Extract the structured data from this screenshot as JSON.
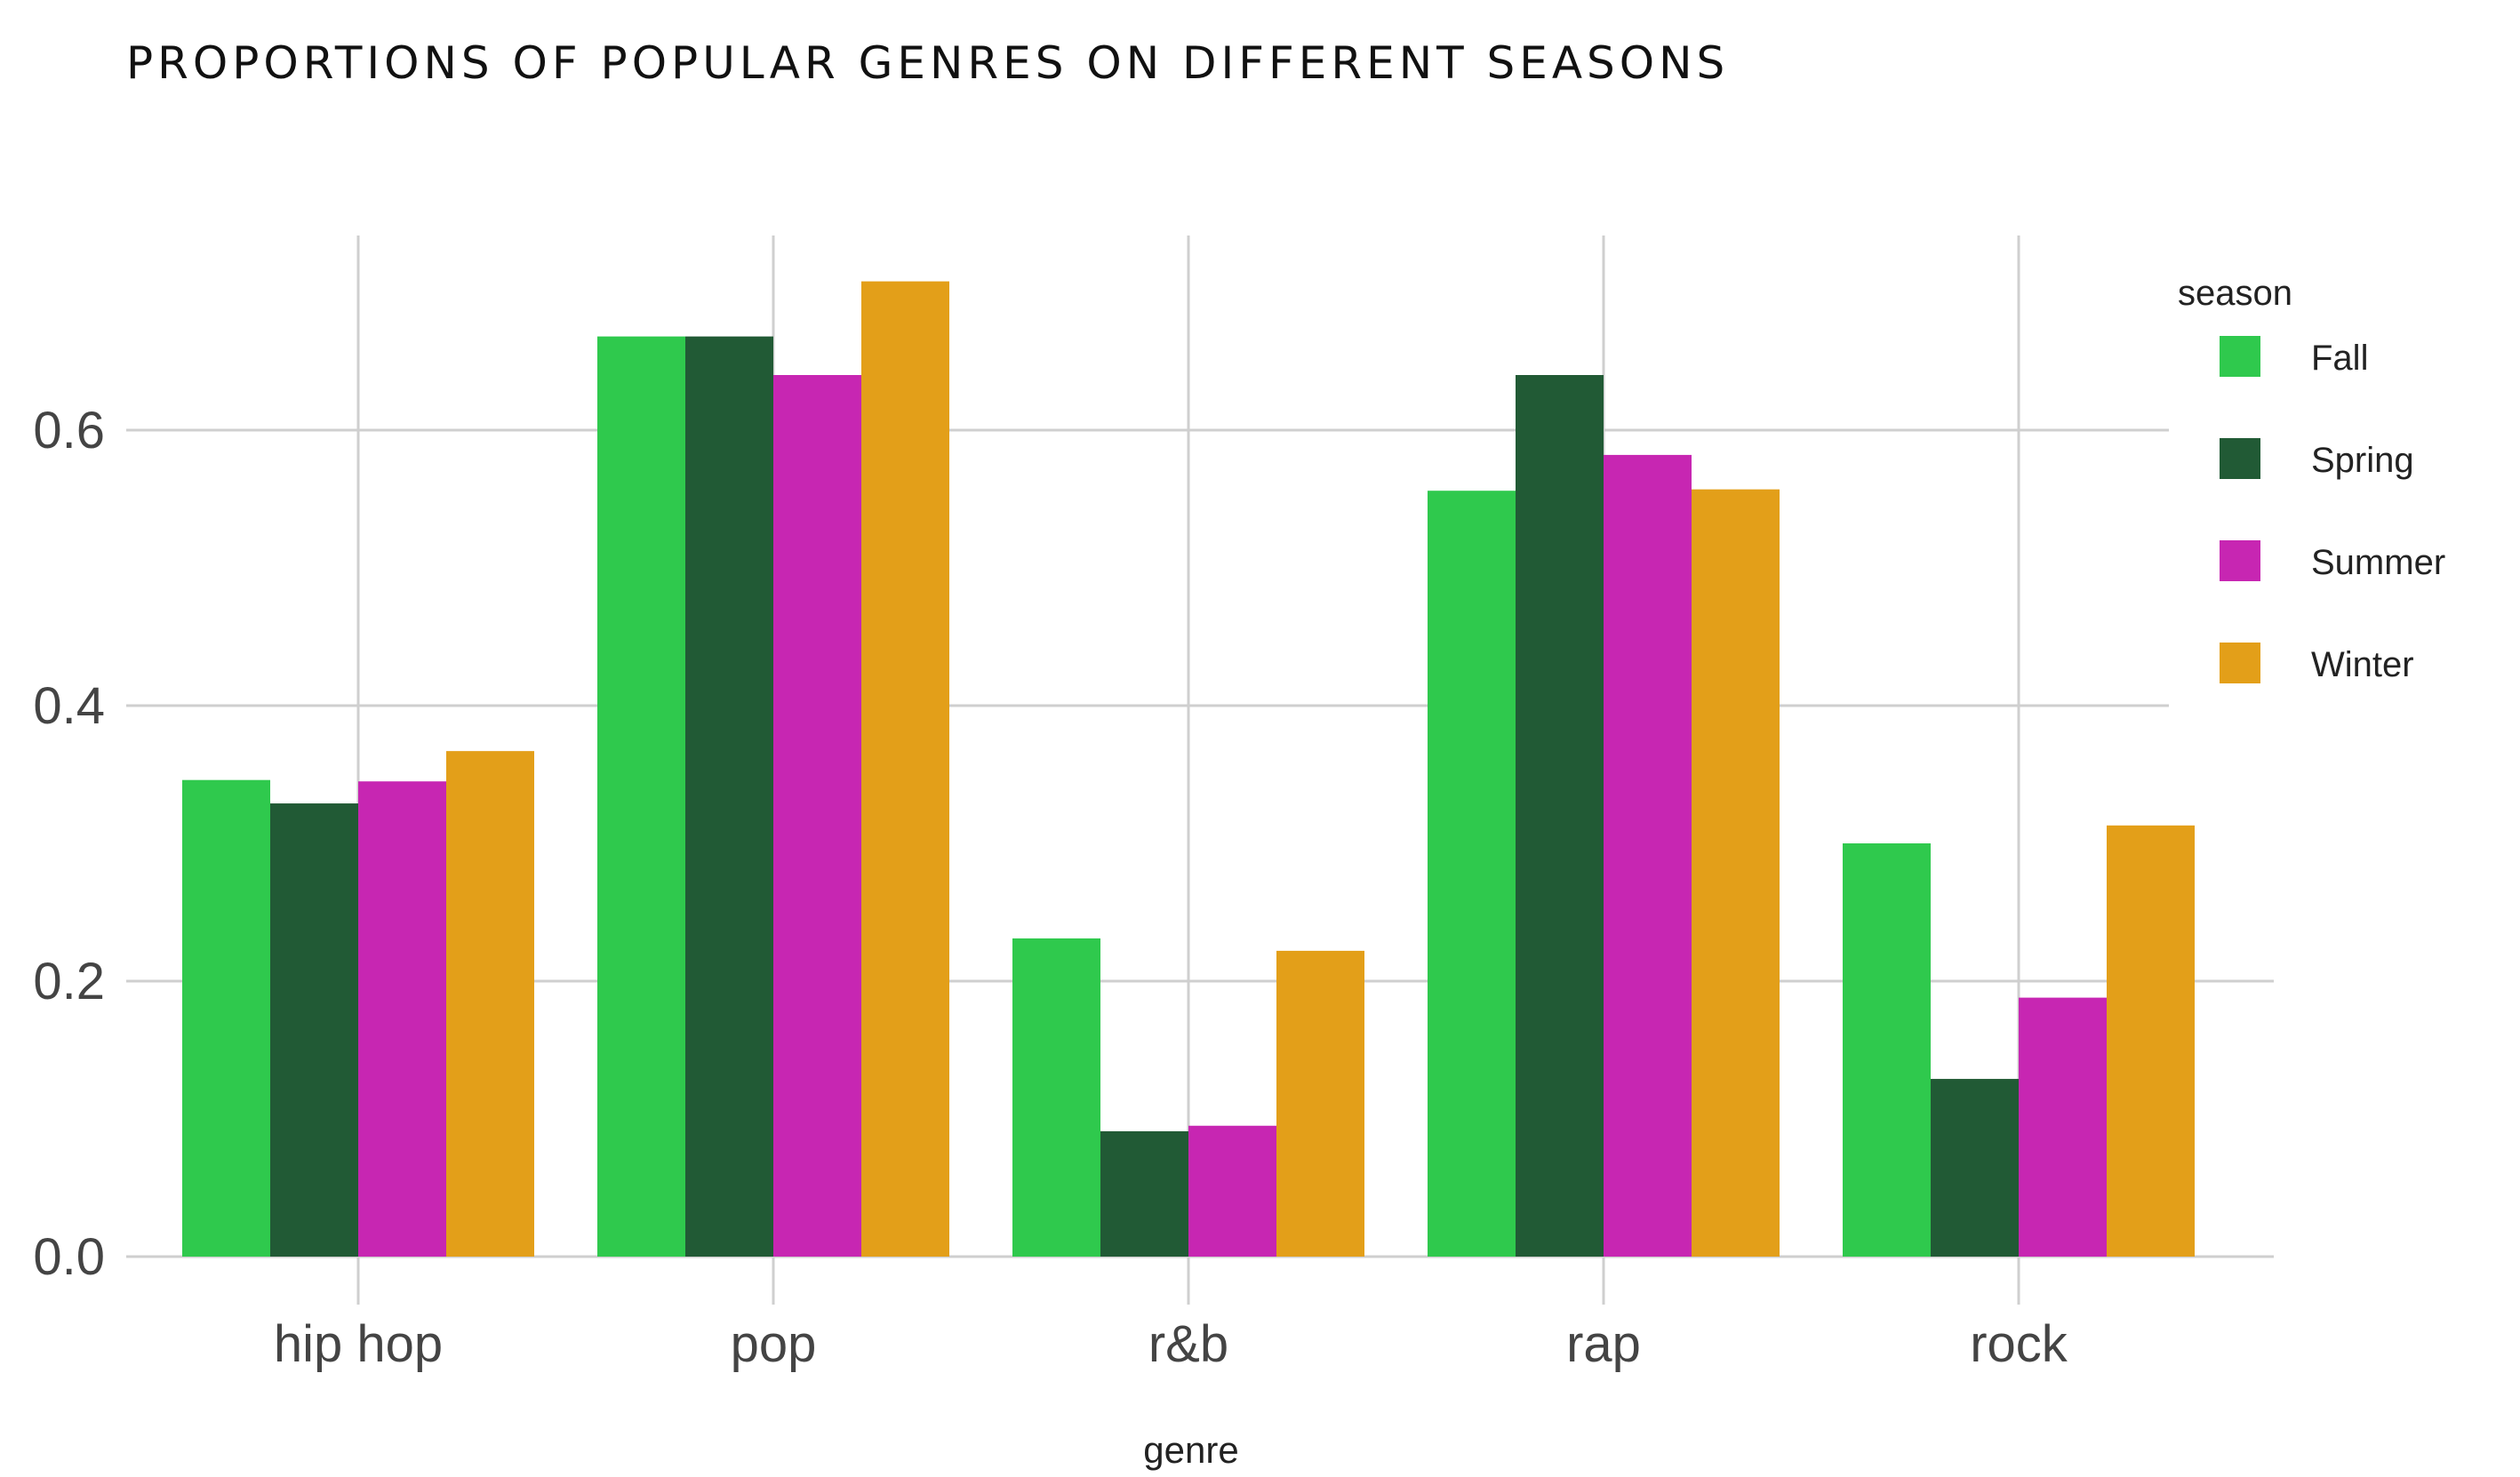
{
  "chart_data": {
    "type": "bar",
    "title": "PROPORTIONS OF POPULAR GENRES ON DIFFERENT SEASONS",
    "xlabel": "genre",
    "ylabel": "",
    "categories": [
      "hip hop",
      "pop",
      "r&b",
      "rap",
      "rock"
    ],
    "ylim": [
      0,
      0.74
    ],
    "yticks": [
      "0.0",
      "0.2",
      "0.4",
      "0.6"
    ],
    "legend": {
      "title": "season",
      "placement": "right"
    },
    "grid": true,
    "series": [
      {
        "name": "Fall",
        "color": "#2fc94d",
        "values": [
          0.346,
          0.668,
          0.231,
          0.556,
          0.3
        ]
      },
      {
        "name": "Spring",
        "color": "#215a35",
        "values": [
          0.329,
          0.668,
          0.091,
          0.64,
          0.129
        ]
      },
      {
        "name": "Summer",
        "color": "#c726b2",
        "values": [
          0.345,
          0.64,
          0.095,
          0.582,
          0.188
        ]
      },
      {
        "name": "Winter",
        "color": "#e39f19",
        "values": [
          0.367,
          0.708,
          0.222,
          0.557,
          0.313
        ]
      }
    ]
  }
}
